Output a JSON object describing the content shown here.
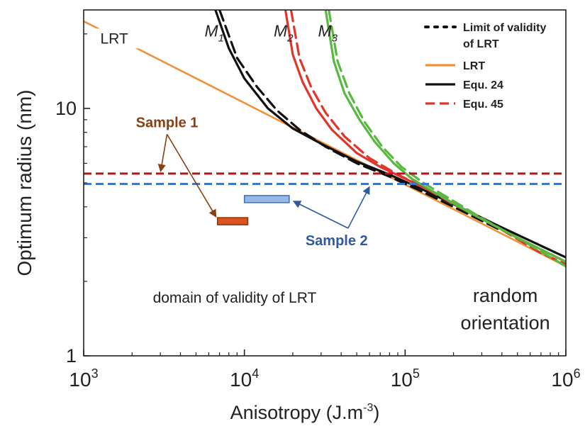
{
  "chart_data": {
    "type": "line",
    "xlabel": "Anisotropy (J.m",
    "xlabel_exp": "-3",
    "xlabel_end": ")",
    "ylabel": "Optimum radius (nm)",
    "x_scale": "log",
    "y_scale": "log",
    "xlim": [
      1000,
      1000000
    ],
    "ylim": [
      1,
      25
    ],
    "x_ticks": [
      {
        "value": 1000,
        "base": "10",
        "exp": "3"
      },
      {
        "value": 10000,
        "base": "10",
        "exp": "4"
      },
      {
        "value": 100000,
        "base": "10",
        "exp": "5"
      },
      {
        "value": 1000000,
        "base": "10",
        "exp": "6"
      }
    ],
    "y_ticks": [
      {
        "value": 1,
        "label": "1"
      },
      {
        "value": 10,
        "label": "10"
      }
    ],
    "legend": {
      "placement": "top-right",
      "entries": [
        {
          "label": "Limit of validity",
          "label2": "of LRT",
          "style": "dotted",
          "color": "#111111"
        },
        {
          "label": "LRT",
          "style": "solid",
          "color": "#f0913a"
        },
        {
          "label": "Equ. 24",
          "style": "solid",
          "color": "#111111"
        },
        {
          "label": "Equ. 45",
          "style": "dashed",
          "color": "#e0352b"
        }
      ]
    },
    "series": [
      {
        "key": "lrt",
        "color": "#f0913a",
        "style": "solid",
        "x": [
          1000,
          1000000
        ],
        "y": [
          22.5,
          2.3
        ]
      },
      {
        "key": "m1_eq24",
        "color": "#111111",
        "style": "solid",
        "x": [
          6600,
          8000,
          10000,
          14000,
          20000,
          30000,
          50000,
          80000,
          120000,
          200000,
          400000,
          1000000
        ],
        "y": [
          25,
          17.5,
          13.2,
          10.0,
          8.3,
          7.2,
          6.1,
          5.4,
          4.8,
          4.1,
          3.3,
          2.5
        ]
      },
      {
        "key": "m1_eq45",
        "color": "#111111",
        "style": "dashed",
        "x": [
          7000,
          9000,
          12000,
          16000,
          22000,
          32000,
          50000,
          80000,
          120000,
          200000,
          400000
        ],
        "y": [
          25,
          16,
          12.2,
          9.8,
          8.2,
          7.0,
          6.0,
          5.3,
          4.7,
          4.0,
          3.2
        ]
      },
      {
        "key": "m2_eq24",
        "color": "#e0352b",
        "style": "solid",
        "x": [
          18000,
          20000,
          23000,
          28000,
          35000,
          50000,
          70000,
          100000,
          150000,
          250000,
          500000,
          1000000
        ],
        "y": [
          25,
          16.5,
          12.8,
          10.0,
          8.2,
          6.6,
          5.8,
          5.2,
          4.6,
          3.8,
          3.0,
          2.4
        ]
      },
      {
        "key": "m2_eq45",
        "color": "#e0352b",
        "style": "dashed",
        "x": [
          19500,
          22000,
          26000,
          32000,
          42000,
          60000,
          90000,
          130000,
          200000,
          350000,
          700000,
          1000000
        ],
        "y": [
          25,
          16,
          12.2,
          9.6,
          7.7,
          6.3,
          5.4,
          4.8,
          4.1,
          3.4,
          2.6,
          2.35
        ]
      },
      {
        "key": "m3_eq24",
        "color": "#58b83f",
        "style": "solid",
        "x": [
          32000,
          36000,
          42000,
          52000,
          65000,
          85000,
          110000,
          150000,
          250000,
          500000,
          1000000
        ],
        "y": [
          25,
          15.5,
          11.5,
          9.0,
          7.3,
          6.0,
          5.2,
          4.6,
          3.8,
          3.0,
          2.4
        ]
      },
      {
        "key": "m3_eq45",
        "color": "#58b83f",
        "style": "dashed",
        "x": [
          33500,
          38000,
          45000,
          56000,
          72000,
          95000,
          130000,
          180000,
          300000,
          600000,
          1000000
        ],
        "y": [
          25,
          15.5,
          11.5,
          8.8,
          7.0,
          5.8,
          5.0,
          4.4,
          3.6,
          2.8,
          2.3
        ]
      }
    ],
    "curve_labels": [
      {
        "key": "m1",
        "text": "M",
        "sub": "1",
        "x": 6500,
        "y": 19.5
      },
      {
        "key": "m2",
        "text": "M",
        "sub": "2",
        "x": 17500,
        "y": 19.5
      },
      {
        "key": "m3",
        "text": "M",
        "sub": "3",
        "x": 33000,
        "y": 19.5
      }
    ],
    "reference_lines": [
      {
        "key": "sample1_limit",
        "y": 5.45,
        "color": "#b5151b",
        "style": "dashed"
      },
      {
        "key": "sample2_limit",
        "y": 4.95,
        "color": "#3b78c8",
        "style": "dashed"
      }
    ],
    "sample_bars": [
      {
        "key": "sample1",
        "x0": 6800,
        "x1": 10500,
        "y": 3.5,
        "fill": "#d9541e",
        "stroke": "#8a2f10"
      },
      {
        "key": "sample2",
        "x0": 10000,
        "x1": 19000,
        "y": 4.3,
        "fill": "#98b6e6",
        "stroke": "#3d6fb8"
      }
    ],
    "annotations": {
      "lrt_label": {
        "text": "LRT",
        "x": 1550,
        "y": 18.3
      },
      "sample1": {
        "text": "Sample 1",
        "color": "#8b3e12",
        "x": 3300,
        "y": 8.4
      },
      "sample2": {
        "text": "Sample 2",
        "color": "#2f5b9e",
        "x": 24000,
        "y": 2.8
      },
      "domain": {
        "text": "domain of validity of LRT",
        "x": 8700,
        "y": 1.64
      },
      "random1": {
        "text": "random",
        "x": 420000,
        "y": 1.65
      },
      "random2": {
        "text": "orientation",
        "x": 420000,
        "y": 1.28
      }
    }
  }
}
